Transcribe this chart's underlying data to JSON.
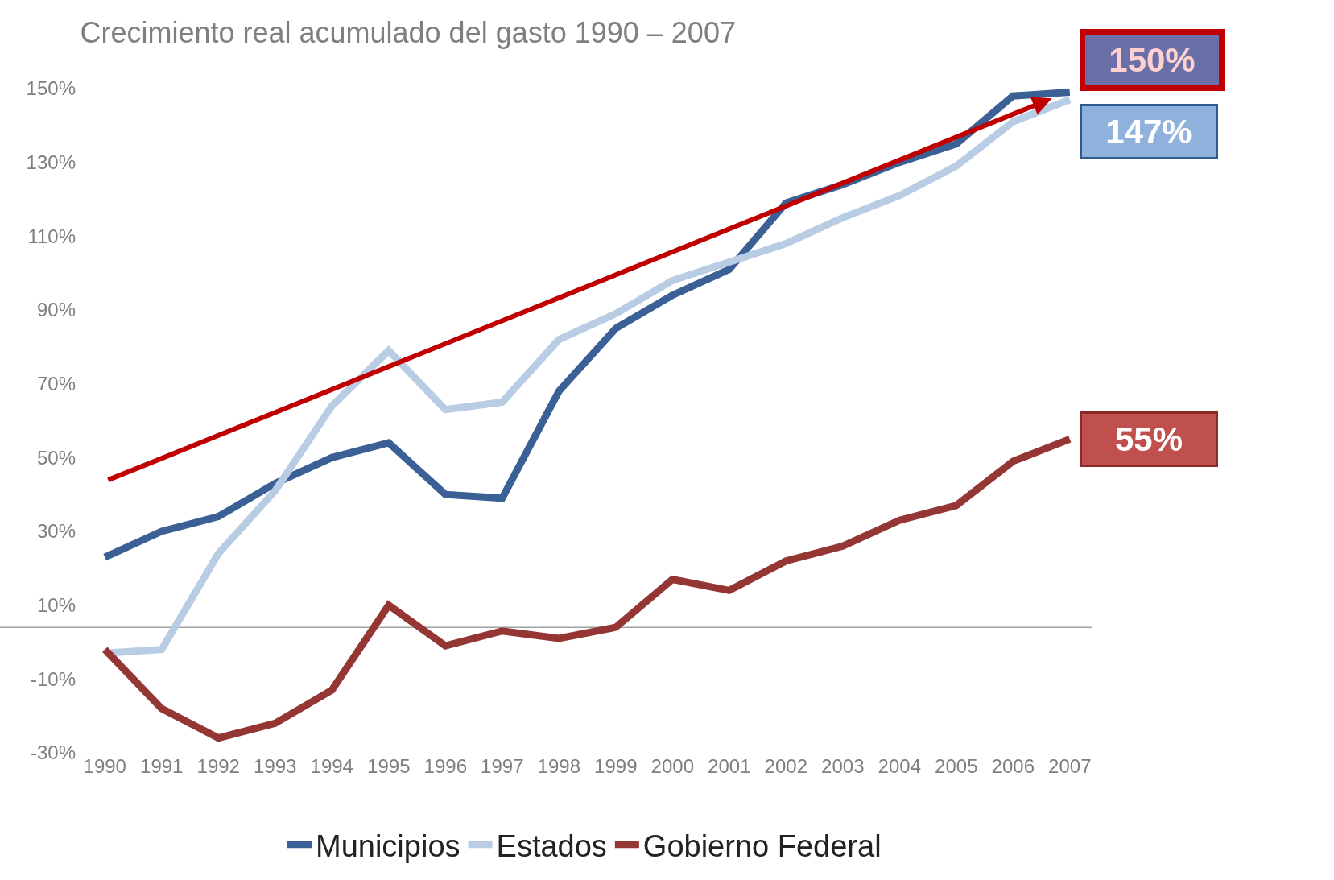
{
  "chart_data": {
    "type": "line",
    "title": "Crecimiento real acumulado del gasto 1990 – 2007",
    "categories": [
      "1990",
      "1991",
      "1992",
      "1993",
      "1994",
      "1995",
      "1996",
      "1997",
      "1998",
      "1999",
      "2000",
      "2001",
      "2002",
      "2003",
      "2004",
      "2005",
      "2006",
      "2007"
    ],
    "series": [
      {
        "name": "Municipios",
        "color": "#3a6095",
        "values": [
          23,
          30,
          34,
          43,
          50,
          54,
          40,
          39,
          68,
          85,
          94,
          101,
          119,
          124,
          130,
          135,
          148,
          149
        ]
      },
      {
        "name": "Estados",
        "color": "#b8cce4",
        "values": [
          -3,
          -2,
          24,
          41,
          64,
          79,
          63,
          65,
          82,
          89,
          98,
          103,
          108,
          115,
          121,
          129,
          141,
          147
        ]
      },
      {
        "name": "Gobierno Federal",
        "color": "#943634",
        "values": [
          -2,
          -18,
          -26,
          -22,
          -13,
          10,
          -1,
          3,
          1,
          4,
          17,
          14,
          22,
          26,
          33,
          37,
          49,
          55
        ]
      }
    ],
    "ylim": [
      -30,
      150
    ],
    "yticks": [
      {
        "value": -30,
        "label": "-30%"
      },
      {
        "value": -10,
        "label": "-10%"
      },
      {
        "value": 10,
        "label": "10%"
      },
      {
        "value": 30,
        "label": "30%"
      },
      {
        "value": 50,
        "label": "50%"
      },
      {
        "value": 70,
        "label": "70%"
      },
      {
        "value": 90,
        "label": "90%"
      },
      {
        "value": 110,
        "label": "110%"
      },
      {
        "value": 130,
        "label": "130%"
      },
      {
        "value": 150,
        "label": "150%"
      }
    ],
    "ref_lines": [
      {
        "axis": "y",
        "value": 4,
        "color": "#a0a0a0"
      }
    ],
    "annotations": [
      {
        "text": "150%",
        "x": "2007",
        "y": 149
      },
      {
        "text": "147%",
        "x": "2007",
        "y": 147
      },
      {
        "text": "55%",
        "x": "2007",
        "y": 55
      }
    ],
    "grid": false,
    "legend": "bottom",
    "marker": "none",
    "line_style": "solid"
  }
}
